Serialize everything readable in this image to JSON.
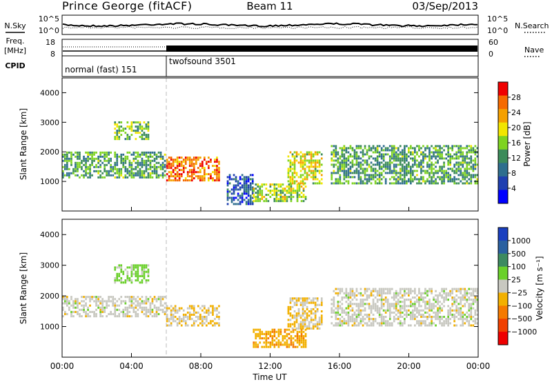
{
  "header": {
    "station": "Prince George (fitACF)",
    "beam": "Beam 11",
    "date": "03/Sep/2013"
  },
  "chart_data": [
    {
      "type": "line",
      "panel": "noise",
      "left_label": "N.Sky",
      "right_label": "N.Search",
      "left_ticks": [
        "10^5",
        "10^0"
      ],
      "right_ticks": [
        "10^5",
        "10^0"
      ],
      "series": [
        {
          "name": "N.Sky",
          "style": "solid",
          "color": "#000000"
        },
        {
          "name": "N.Search",
          "style": "dotted",
          "color": "#000000"
        }
      ]
    },
    {
      "type": "line",
      "panel": "frequency",
      "left_label_lines": [
        "Freq.",
        "[MHz]"
      ],
      "right_label": "Nave",
      "left_ticks": [
        "18",
        "8"
      ],
      "right_ticks": [
        "60",
        "0"
      ],
      "series": [
        {
          "name": "Freq.",
          "style": "solid",
          "color": "#000000"
        },
        {
          "name": "Nave",
          "style": "dotted",
          "color": "#000000"
        }
      ]
    },
    {
      "type": "table",
      "panel": "cpid",
      "label": "CPID",
      "segments": [
        {
          "name": "normal (fast) 151",
          "start_hour": 0,
          "end_hour": 6
        },
        {
          "name": "twofsound 3501",
          "start_hour": 6,
          "end_hour": 24
        }
      ]
    },
    {
      "type": "heatmap",
      "panel": "power",
      "ylabel": "Slant Range [km]",
      "xlim": [
        0,
        24
      ],
      "ylim": [
        0,
        4500
      ],
      "yticks": [
        "1000",
        "2000",
        "3000",
        "4000"
      ],
      "ytick_values": [
        1000,
        2000,
        3000,
        4000
      ],
      "colorbar": {
        "label": "Power [dB]",
        "tick_labels": [
          "4",
          "8",
          "12",
          "16",
          "20",
          "24",
          "28"
        ],
        "colors": [
          "#0000ff",
          "#1f3fb0",
          "#2e6e8e",
          "#3c8b5a",
          "#7ed321",
          "#f2e600",
          "#f5a000",
          "#f56a00",
          "#ef0000"
        ]
      },
      "echo_regions": [
        {
          "t": [
            0.0,
            6.0
          ],
          "r": [
            1100,
            2000
          ],
          "value": 14
        },
        {
          "t": [
            3.0,
            5.0
          ],
          "r": [
            2400,
            3000
          ],
          "value": 16
        },
        {
          "t": [
            6.0,
            9.0
          ],
          "r": [
            1000,
            1800
          ],
          "value": 26
        },
        {
          "t": [
            9.5,
            11.0
          ],
          "r": [
            200,
            1200
          ],
          "value": 8
        },
        {
          "t": [
            11.0,
            14.0
          ],
          "r": [
            300,
            900
          ],
          "value": 18
        },
        {
          "t": [
            13.0,
            15.0
          ],
          "r": [
            900,
            2000
          ],
          "value": 20
        },
        {
          "t": [
            15.5,
            24.0
          ],
          "r": [
            900,
            2200
          ],
          "value": 14
        }
      ]
    },
    {
      "type": "heatmap",
      "panel": "velocity",
      "ylabel": "Slant Range [km]",
      "xlabel": "Time UT",
      "xlim": [
        0,
        24
      ],
      "ylim": [
        0,
        4500
      ],
      "xticks": [
        "00:00",
        "04:00",
        "08:00",
        "12:00",
        "16:00",
        "20:00",
        "00:00"
      ],
      "xtick_values": [
        0,
        4,
        8,
        12,
        16,
        20,
        24
      ],
      "yticks": [
        "1000",
        "2000",
        "3000",
        "4000"
      ],
      "ytick_values": [
        1000,
        2000,
        3000,
        4000
      ],
      "colorbar": {
        "label": "Velocity [m s⁻¹]",
        "tick_labels": [
          "1000",
          "500",
          "100",
          "25",
          "−25",
          "−100",
          "−500",
          "−1000"
        ],
        "colors": [
          "#1a3fbf",
          "#2a60a0",
          "#3d8a60",
          "#6ad02a",
          "#c8c8c0",
          "#f2b000",
          "#f57a00",
          "#f04000",
          "#ee0000"
        ]
      },
      "echo_regions": [
        {
          "t": [
            0.0,
            6.0
          ],
          "r": [
            1300,
            2000
          ],
          "value": 0
        },
        {
          "t": [
            3.0,
            5.0
          ],
          "r": [
            2400,
            3000
          ],
          "value": 200
        },
        {
          "t": [
            6.0,
            9.0
          ],
          "r": [
            1000,
            1700
          ],
          "value": -120
        },
        {
          "t": [
            11.0,
            14.0
          ],
          "r": [
            300,
            900
          ],
          "value": -300
        },
        {
          "t": [
            13.0,
            15.0
          ],
          "r": [
            900,
            1900
          ],
          "value": -150
        },
        {
          "t": [
            15.5,
            24.0
          ],
          "r": [
            1000,
            2200
          ],
          "value": 0
        }
      ]
    }
  ]
}
